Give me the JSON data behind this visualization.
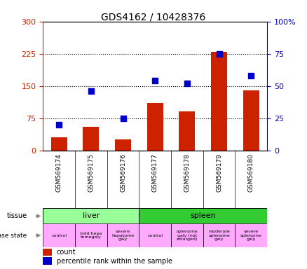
{
  "title": "GDS4162 / 10428376",
  "samples": [
    "GSM569174",
    "GSM569175",
    "GSM569176",
    "GSM569177",
    "GSM569178",
    "GSM569179",
    "GSM569180"
  ],
  "counts": [
    30,
    55,
    25,
    110,
    90,
    230,
    140
  ],
  "percentile_ranks": [
    20,
    46,
    25,
    54,
    52,
    75,
    58
  ],
  "left_ylim": [
    0,
    300
  ],
  "right_ylim": [
    0,
    100
  ],
  "left_yticks": [
    0,
    75,
    150,
    225,
    300
  ],
  "right_yticks": [
    0,
    25,
    50,
    75,
    100
  ],
  "left_yticklabels": [
    "0",
    "75",
    "150",
    "225",
    "300"
  ],
  "right_yticklabels": [
    "0",
    "25",
    "50",
    "75",
    "100%"
  ],
  "bar_color": "#cc2200",
  "dot_color": "#0000cc",
  "tissue_groups": [
    {
      "label": "liver",
      "start": 0,
      "end": 3,
      "color": "#99ff99"
    },
    {
      "label": "spleen",
      "start": 3,
      "end": 7,
      "color": "#33cc33"
    }
  ],
  "disease_states": [
    {
      "label": "control",
      "start": 0,
      "end": 1,
      "color": "#ffaaff"
    },
    {
      "label": "mild hepa\ntomegaly",
      "start": 1,
      "end": 2,
      "color": "#ffaaff"
    },
    {
      "label": "severe\nhepatome\ngaly",
      "start": 2,
      "end": 3,
      "color": "#ffaaff"
    },
    {
      "label": "control",
      "start": 3,
      "end": 4,
      "color": "#ffaaff"
    },
    {
      "label": "splenome\ngaly (not\nenlarged)",
      "start": 4,
      "end": 5,
      "color": "#ffaaff"
    },
    {
      "label": "moderate\nsplenome\ngaly",
      "start": 5,
      "end": 6,
      "color": "#ffaaff"
    },
    {
      "label": "severe\nsplenome\ngaly",
      "start": 6,
      "end": 7,
      "color": "#ffaaff"
    }
  ],
  "background_color": "#ffffff",
  "tick_label_left_color": "#cc2200",
  "tick_label_right_color": "#0000cc",
  "label_bg_color": "#cccccc"
}
